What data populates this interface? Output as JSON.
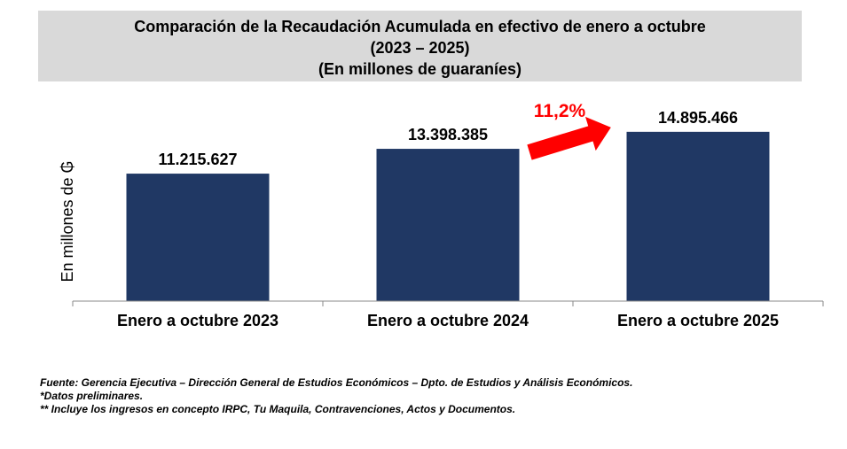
{
  "chart_data": {
    "type": "bar",
    "title": [
      "Comparación de la Recaudación Acumulada en efectivo de enero a octubre",
      "(2023 – 2025)",
      "(En millones de guaraníes)"
    ],
    "ylabel": "En millones de ₲",
    "xlabel": "",
    "categories": [
      "Enero a octubre 2023",
      "Enero a octubre 2024",
      "Enero a octubre 2025"
    ],
    "values": [
      11215627,
      13398385,
      14895466
    ],
    "data_labels": [
      "11.215.627",
      "13.398.385",
      "14.895.466"
    ],
    "ylim": [
      0,
      18000000
    ],
    "grid": false,
    "bar_color": "#203864",
    "annotation": {
      "text": "11,2%",
      "color": "#ff0000",
      "icon": "arrow-right-icon"
    }
  },
  "notes": [
    "Fuente: Gerencia Ejecutiva – Dirección General de Estudios Económicos – Dpto. de Estudios y Análisis Económicos.",
    "*Datos preliminares.",
    "** Incluye los ingresos en concepto IRPC, Tu Maquila, Contravenciones, Actos y Documentos."
  ]
}
